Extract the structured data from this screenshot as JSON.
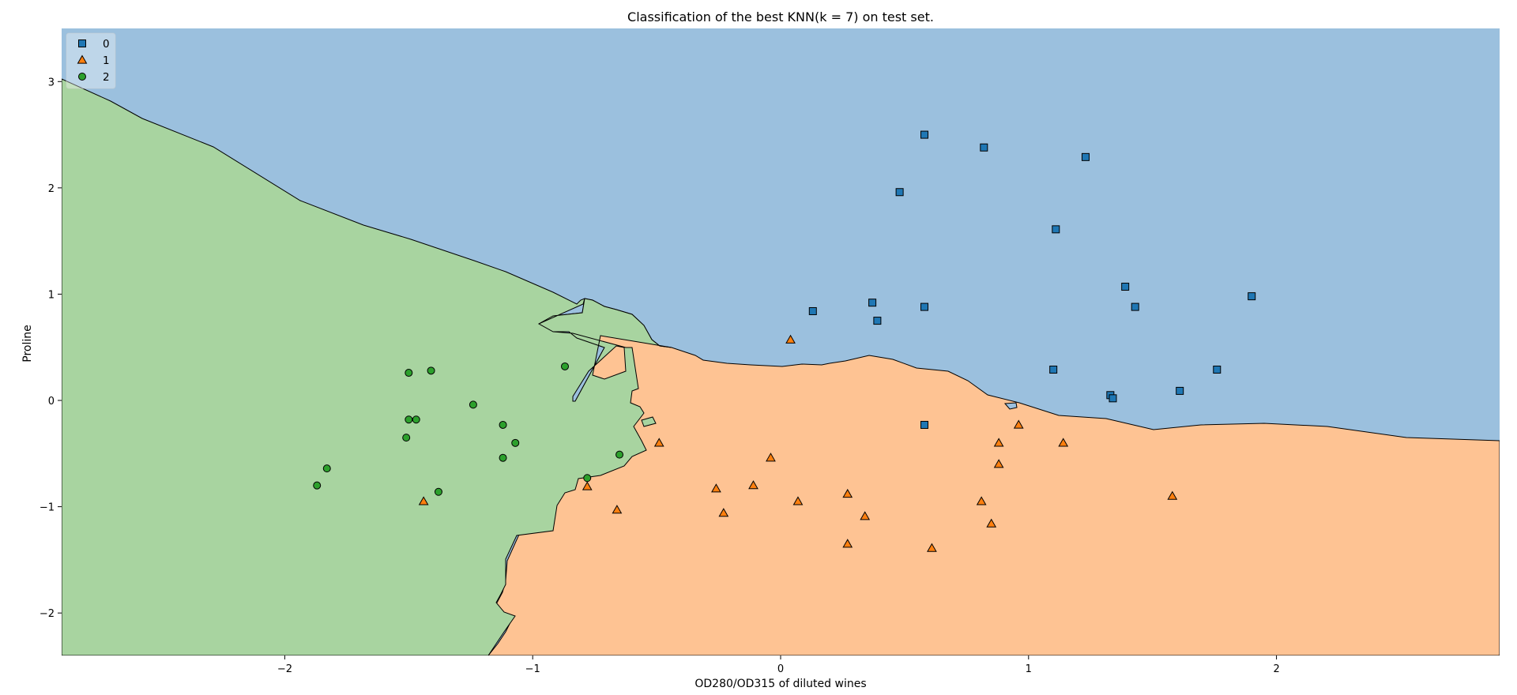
{
  "chart_data": {
    "type": "scatter",
    "title": "Classification of the best KNN(k = 7) on test set.",
    "xlabel": "OD280/OD315 of diluted wines",
    "ylabel": "Proline",
    "xlim": [
      -2.9,
      2.9
    ],
    "ylim": [
      -2.4,
      3.5
    ],
    "xticks": [
      -2,
      -1,
      0,
      1,
      2
    ],
    "yticks": [
      -2,
      -1,
      0,
      1,
      2,
      3
    ],
    "grid": false,
    "legend_position": "top-left",
    "region_colors": {
      "0": "#9bc0de",
      "1": "#fec393",
      "2": "#a8d4a0"
    },
    "series": [
      {
        "name": "0",
        "marker": "square",
        "color": "#1f77b4",
        "points": [
          [
            0.58,
            2.5
          ],
          [
            0.82,
            2.38
          ],
          [
            1.23,
            2.29
          ],
          [
            0.48,
            1.96
          ],
          [
            1.11,
            1.61
          ],
          [
            1.39,
            1.07
          ],
          [
            1.9,
            0.98
          ],
          [
            0.37,
            0.92
          ],
          [
            0.58,
            0.88
          ],
          [
            1.43,
            0.88
          ],
          [
            0.13,
            0.84
          ],
          [
            0.39,
            0.75
          ],
          [
            1.1,
            0.29
          ],
          [
            1.76,
            0.29
          ],
          [
            1.61,
            0.09
          ],
          [
            1.33,
            0.05
          ],
          [
            1.34,
            0.02
          ],
          [
            0.58,
            -0.23
          ]
        ]
      },
      {
        "name": "1",
        "marker": "triangle",
        "color": "#ff7f0e",
        "points": [
          [
            0.04,
            0.57
          ],
          [
            0.96,
            -0.23
          ],
          [
            -0.49,
            -0.4
          ],
          [
            0.88,
            -0.4
          ],
          [
            1.14,
            -0.4
          ],
          [
            -0.04,
            -0.54
          ],
          [
            0.88,
            -0.6
          ],
          [
            -0.78,
            -0.81
          ],
          [
            -0.11,
            -0.8
          ],
          [
            -0.26,
            -0.83
          ],
          [
            0.27,
            -0.88
          ],
          [
            1.58,
            -0.9
          ],
          [
            0.07,
            -0.95
          ],
          [
            0.81,
            -0.95
          ],
          [
            -1.44,
            -0.95
          ],
          [
            -0.66,
            -1.03
          ],
          [
            -0.23,
            -1.06
          ],
          [
            0.34,
            -1.09
          ],
          [
            0.85,
            -1.16
          ],
          [
            0.27,
            -1.35
          ],
          [
            0.61,
            -1.39
          ]
        ]
      },
      {
        "name": "2",
        "marker": "circle",
        "color": "#2ca02c",
        "points": [
          [
            -0.87,
            0.32
          ],
          [
            -1.41,
            0.28
          ],
          [
            -1.5,
            0.26
          ],
          [
            -1.24,
            -0.04
          ],
          [
            -1.5,
            -0.18
          ],
          [
            -1.47,
            -0.18
          ],
          [
            -1.12,
            -0.23
          ],
          [
            -1.51,
            -0.35
          ],
          [
            -1.07,
            -0.4
          ],
          [
            -0.65,
            -0.51
          ],
          [
            -1.12,
            -0.54
          ],
          [
            -1.83,
            -0.64
          ],
          [
            -0.78,
            -0.73
          ],
          [
            -1.87,
            -0.8
          ],
          [
            -1.38,
            -0.86
          ]
        ]
      }
    ]
  }
}
